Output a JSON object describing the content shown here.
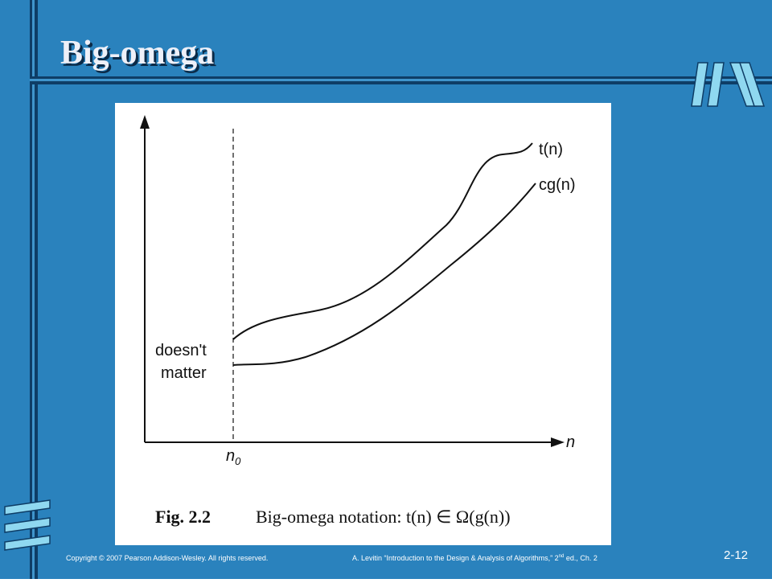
{
  "slide": {
    "title": "Big-omega"
  },
  "figure": {
    "labels": {
      "t_n": "t(n)",
      "cg_n": "cg(n)",
      "doesnt_matter": [
        "doesn't",
        "matter"
      ],
      "x_axis": "n",
      "n0": {
        "base": "n",
        "sub": "0"
      }
    },
    "caption": {
      "label": "Fig. 2.2",
      "text": "Big-omega notation: t(n) ∈ Ω(g(n))"
    }
  },
  "footer": {
    "copyright": "Copyright © 2007 Pearson Addison-Wesley. All rights reserved.",
    "citation": {
      "before": "A. Levitin “Introduction to the Design & Analysis of Algorithms,” 2",
      "sup": "nd",
      "after": " ed., Ch. 2"
    },
    "page": "2-12"
  }
}
